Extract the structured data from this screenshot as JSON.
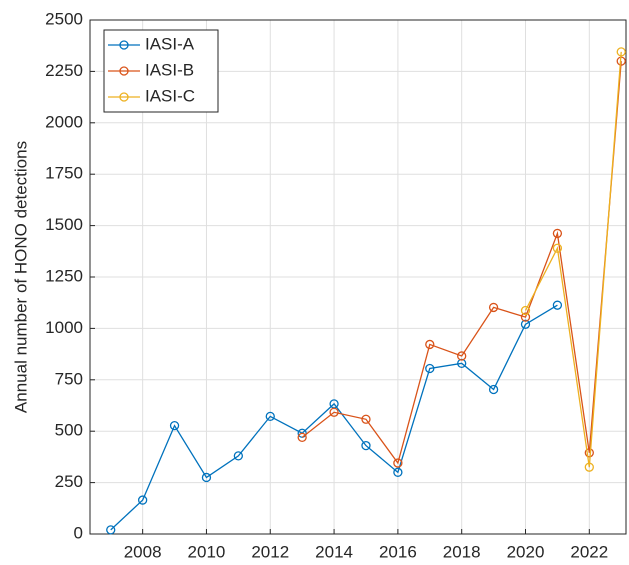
{
  "chart_data": {
    "type": "line",
    "y_label": "Annual number of HONO detections",
    "x": [
      2007,
      2008,
      2009,
      2010,
      2011,
      2012,
      2013,
      2014,
      2015,
      2016,
      2017,
      2018,
      2019,
      2020,
      2021,
      2022,
      2023
    ],
    "series": [
      {
        "name": "IASI-A",
        "color": "#0072BD",
        "values": [
          20,
          165,
          527,
          275,
          380,
          572,
          490,
          633,
          430,
          300,
          805,
          830,
          703,
          1020,
          1113,
          null,
          null
        ]
      },
      {
        "name": "IASI-B",
        "color": "#D95319",
        "values": [
          null,
          null,
          null,
          null,
          null,
          null,
          470,
          592,
          558,
          345,
          922,
          866,
          1102,
          1055,
          1462,
          395,
          2300
        ]
      },
      {
        "name": "IASI-C",
        "color": "#EDB120",
        "values": [
          null,
          null,
          null,
          null,
          null,
          null,
          null,
          null,
          null,
          null,
          null,
          null,
          null,
          1087,
          1390,
          325,
          2345
        ]
      }
    ],
    "xlim": [
      2006.35,
      2023.15
    ],
    "xticks": [
      2008,
      2010,
      2012,
      2014,
      2016,
      2018,
      2020,
      2022
    ],
    "ylim": [
      0,
      2500
    ],
    "yticks": [
      0,
      250,
      500,
      750,
      1000,
      1250,
      1500,
      1750,
      2000,
      2250,
      2500
    ],
    "grid": true,
    "legend": "upper-left"
  }
}
